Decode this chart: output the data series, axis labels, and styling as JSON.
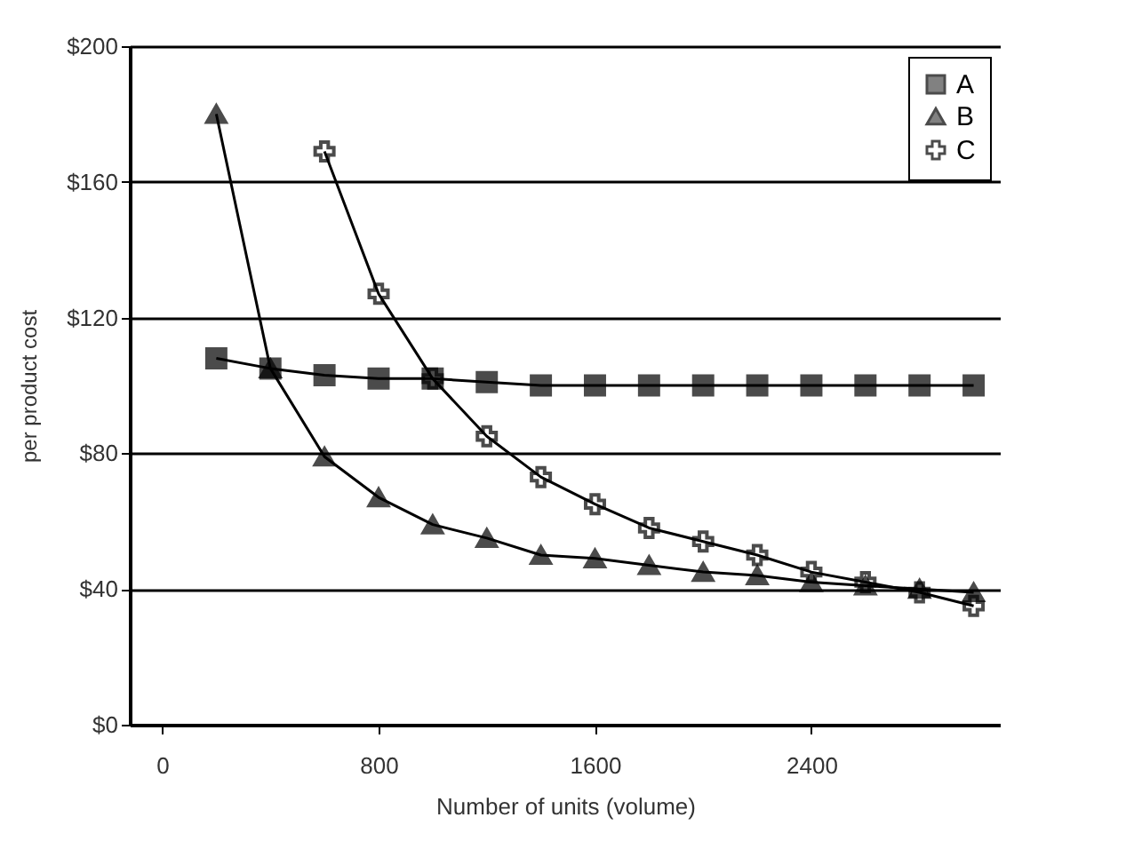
{
  "chart_data": {
    "type": "line",
    "xlabel": "Number of units (volume)",
    "ylabel": "per product cost",
    "x": [
      200,
      400,
      600,
      800,
      1000,
      1200,
      1400,
      1600,
      1800,
      2000,
      2200,
      2400,
      2600,
      2800,
      3000
    ],
    "series": [
      {
        "name": "A",
        "color": "#000000",
        "marker": "square",
        "values": [
          108,
          105,
          103,
          102,
          102,
          101,
          100,
          100,
          100,
          100,
          100,
          100,
          100,
          100,
          100
        ]
      },
      {
        "name": "B",
        "color": "#000000",
        "marker": "triangle",
        "values": [
          180,
          105,
          79,
          67,
          59,
          55,
          50,
          49,
          47,
          45,
          44,
          42,
          41,
          40,
          39
        ]
      },
      {
        "name": "C",
        "color": "#000000",
        "marker": "cross",
        "values": [
          null,
          null,
          169,
          127,
          102,
          85,
          73,
          65,
          58,
          54,
          50,
          45,
          42,
          39,
          35
        ]
      }
    ],
    "xlim": [
      -120,
      3100
    ],
    "xticks": [
      0,
      800,
      1600,
      2400
    ],
    "ylim": [
      0,
      200
    ],
    "yticks": [
      {
        "value": 0,
        "label": "$0"
      },
      {
        "value": 40,
        "label": "$40"
      },
      {
        "value": 80,
        "label": "$80"
      },
      {
        "value": 120,
        "label": "$120"
      },
      {
        "value": 160,
        "label": "$160"
      },
      {
        "value": 200,
        "label": "$200"
      }
    ],
    "grid": "y",
    "legend": "top right",
    "line_style": "solid"
  }
}
